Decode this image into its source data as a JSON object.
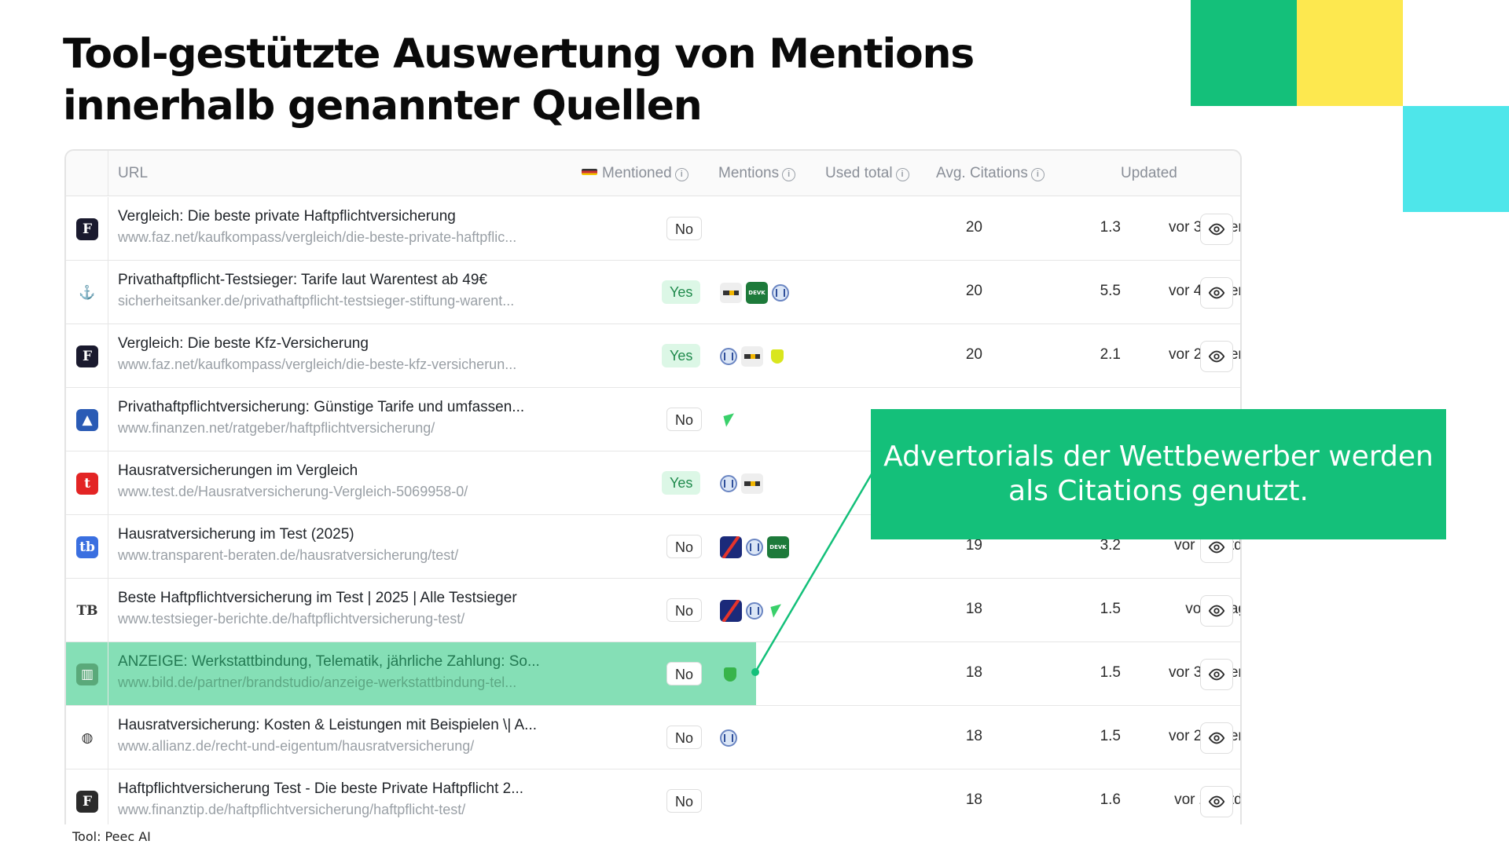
{
  "slide": {
    "title": "Tool-gestützte Auswertung von Mentions innerhalb genannter Quellen",
    "callout": "Advertorials der Wettbewerber werden als Citations genutzt.",
    "source_note": "Tool: Peec AI",
    "colors": {
      "green": "#14c07a",
      "yellow": "#fde84f",
      "cyan": "#4ee6ea",
      "highlight": "#85dfb6"
    }
  },
  "table": {
    "headers": {
      "url": "URL",
      "mentioned": "Mentioned",
      "mentions": "Mentions",
      "used_total": "Used total",
      "avg_citations": "Avg. Citations",
      "updated": "Updated"
    },
    "rows": [
      {
        "title": "Vergleich: Die beste private Haftpflichtversicherung",
        "url": "www.faz.net/kaufkompass/vergleich/die-beste-private-haftpflic...",
        "mentioned": "No",
        "mentions": [],
        "used_total": "20",
        "avg_citations": "1.3",
        "updated": "vor 3 Tagen",
        "icon": "faz-icon",
        "icon_glyph": "F",
        "icon_color": "#1a1a2e"
      },
      {
        "title": "Privathaftpflicht-Testsieger: Tarife laut Warentest ab 49€",
        "url": "sicherheitsanker.de/privathaftpflicht-testsieger-stiftung-warent...",
        "mentioned": "Yes",
        "mentions": [
          "huk",
          "devk",
          "allianz"
        ],
        "used_total": "20",
        "avg_citations": "5.5",
        "updated": "vor 4 Tagen",
        "icon": "anchor-icon",
        "icon_glyph": "⚓",
        "icon_color": "transparent"
      },
      {
        "title": "Vergleich: Die beste Kfz-Versicherung",
        "url": "www.faz.net/kaufkompass/vergleich/die-beste-kfz-versicherun...",
        "mentioned": "Yes",
        "mentions": [
          "allianz",
          "huk",
          "hdi"
        ],
        "used_total": "20",
        "avg_citations": "2.1",
        "updated": "vor 2 Tagen",
        "icon": "faz-icon",
        "icon_glyph": "F",
        "icon_color": "#1a1a2e"
      },
      {
        "title": "Privathaftpflichtversicherung: Günstige Tarife und umfassen...",
        "url": "www.finanzen.net/ratgeber/haftpflichtversicherung/",
        "mentioned": "No",
        "mentions": [
          "green-tri"
        ],
        "used_total": "",
        "avg_citations": "",
        "updated": "",
        "icon": "chart-icon",
        "icon_glyph": "▲",
        "icon_color": "#2a5bb5"
      },
      {
        "title": "Hausratversicherungen im Vergleich",
        "url": "www.test.de/Hausratversicherung-Vergleich-5069958-0/",
        "mentioned": "Yes",
        "mentions": [
          "allianz",
          "huk"
        ],
        "used_total": "",
        "avg_citations": "",
        "updated": "",
        "icon": "test-icon",
        "icon_glyph": "t",
        "icon_color": "#e32424"
      },
      {
        "title": "Hausratversicherung im Test (2025)",
        "url": "www.transparent-beraten.de/hausratversicherung/test/",
        "mentioned": "No",
        "mentions": [
          "check24",
          "allianz",
          "devk"
        ],
        "used_total": "19",
        "avg_citations": "3.2",
        "updated": "vor 13 Std.",
        "icon": "tb-icon",
        "icon_glyph": "tb",
        "icon_color": "#3a6fe0"
      },
      {
        "title": "Beste Haftpflichtversicherung im Test | 2025 | Alle Testsieger",
        "url": "www.testsieger-berichte.de/haftpflichtversicherung-test/",
        "mentioned": "No",
        "mentions": [
          "check24",
          "allianz",
          "green-tri"
        ],
        "used_total": "18",
        "avg_citations": "1.5",
        "updated": "vor 1 Tag",
        "icon": "testsieger-icon",
        "icon_glyph": "TB",
        "icon_color": "transparent"
      },
      {
        "title": "ANZEIGE: Werkstattbindung, Telematik, jährliche Zahlung: So...",
        "url": "www.bild.de/partner/brandstudio/anzeige-werkstattbindung-tel...",
        "mentioned": "No",
        "mentions": [
          "gruen-shield"
        ],
        "used_total": "18",
        "avg_citations": "1.5",
        "updated": "vor 3 Tagen",
        "icon": "bild-icon",
        "icon_glyph": "▥",
        "icon_color": "#5aa97a",
        "highlight": true
      },
      {
        "title": "Hausratversicherung: Kosten & Leistungen mit Beispielen \\| A...",
        "url": "www.allianz.de/recht-und-eigentum/hausratversicherung/",
        "mentioned": "No",
        "mentions": [
          "allianz"
        ],
        "used_total": "18",
        "avg_citations": "1.5",
        "updated": "vor 2 Tagen",
        "icon": "allianz-icon",
        "icon_glyph": "◍",
        "icon_color": "transparent"
      },
      {
        "title": "Haftpflichtversicherung Test - Die beste Private Haftpflicht 2...",
        "url": "www.finanztip.de/haftpflichtversicherung/haftpflicht-test/",
        "mentioned": "No",
        "mentions": [],
        "used_total": "18",
        "avg_citations": "1.6",
        "updated": "vor 22 Std.",
        "icon": "finanztip-icon",
        "icon_glyph": "F",
        "icon_color": "#2b2b2b"
      }
    ]
  }
}
